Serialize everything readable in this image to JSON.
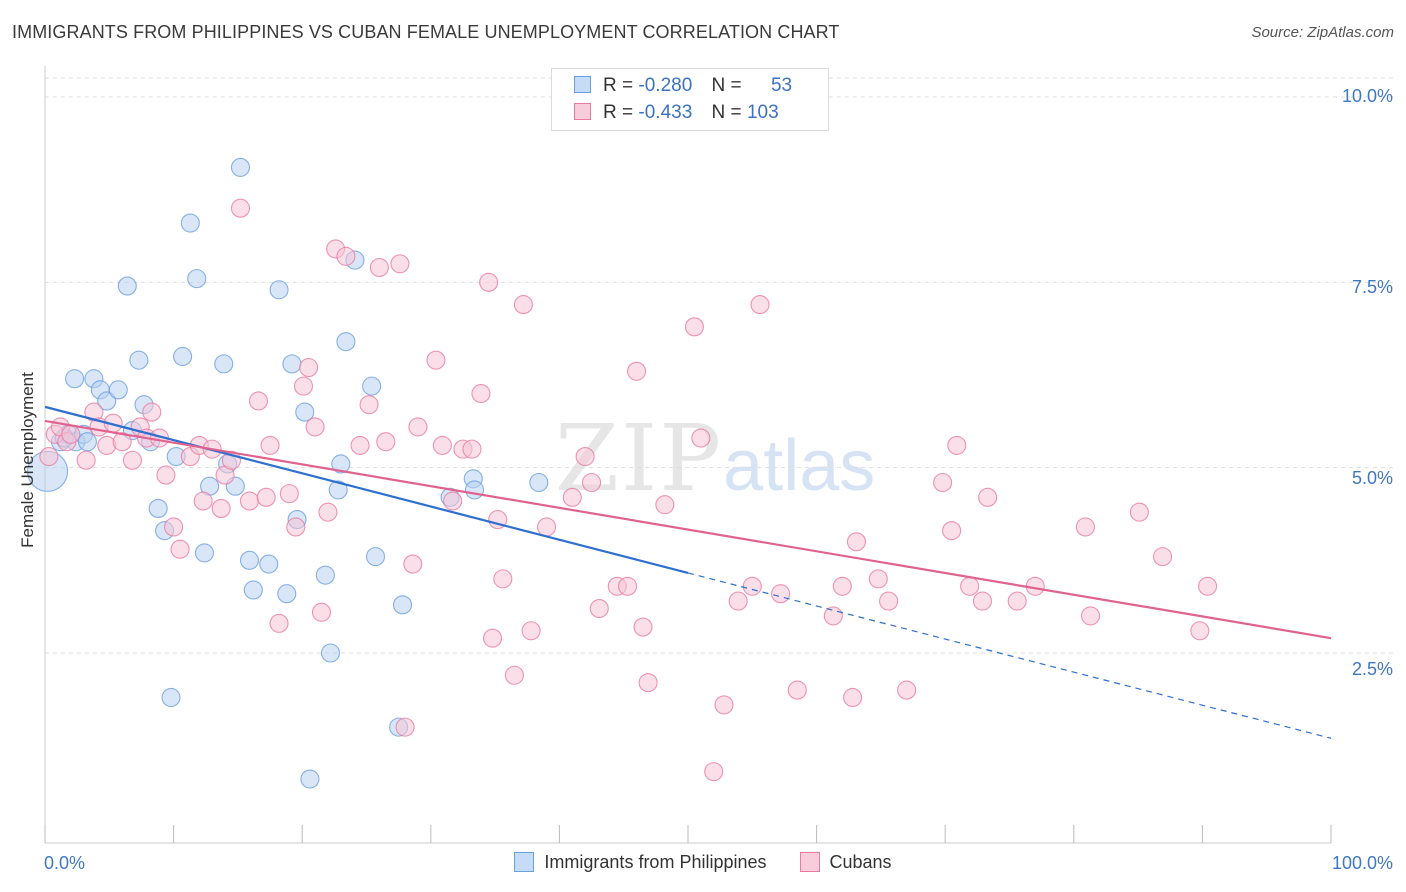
{
  "header": {
    "title": "IMMIGRANTS FROM PHILIPPINES VS CUBAN FEMALE UNEMPLOYMENT CORRELATION CHART",
    "source": "Source: ZipAtlas.com"
  },
  "watermark": {
    "zip": "ZIP",
    "atlas": "atlas"
  },
  "stats": [
    {
      "r_label": "R =",
      "r_value": "-0.280",
      "n_label": "N =",
      "n_value": "53",
      "color": "#a9c7ef"
    },
    {
      "r_label": "R =",
      "r_value": "-0.433",
      "n_label": "N =",
      "n_value": "103",
      "color": "#f4b3c8"
    }
  ],
  "legend": [
    {
      "label": "Immigrants from Philippines",
      "color": "#a9c7ef"
    },
    {
      "label": "Cubans",
      "color": "#f4b3c8"
    }
  ],
  "chart_data": {
    "type": "scatter",
    "title": "IMMIGRANTS FROM PHILIPPINES VS CUBAN FEMALE UNEMPLOYMENT CORRELATION CHART",
    "xlabel": "",
    "ylabel": "Female Unemployment",
    "xlim": [
      0,
      100
    ],
    "ylim": [
      0,
      10
    ],
    "x_tick_labels": [
      "0.0%",
      "100.0%"
    ],
    "y_ticks": [
      2.5,
      5.0,
      7.5,
      10.0
    ],
    "y_tick_labels": [
      "2.5%",
      "5.0%",
      "7.5%",
      "10.0%"
    ],
    "grid": "horizontal dashed",
    "legend_position": "bottom-center",
    "series": [
      {
        "name": "Immigrants from Philippines",
        "color": "#6a9fe0",
        "fill": "#b9d2f3",
        "points": [
          [
            0.2,
            4.95
          ],
          [
            1.2,
            5.35
          ],
          [
            1.8,
            5.45
          ],
          [
            2.3,
            6.2
          ],
          [
            2.4,
            5.35
          ],
          [
            3.0,
            5.45
          ],
          [
            3.8,
            6.2
          ],
          [
            4.3,
            6.05
          ],
          [
            4.8,
            5.9
          ],
          [
            5.7,
            6.05
          ],
          [
            6.4,
            7.45
          ],
          [
            6.8,
            5.5
          ],
          [
            7.3,
            6.45
          ],
          [
            7.7,
            5.85
          ],
          [
            8.2,
            5.35
          ],
          [
            8.8,
            4.45
          ],
          [
            9.3,
            4.15
          ],
          [
            9.8,
            1.9
          ],
          [
            10.2,
            5.15
          ],
          [
            10.7,
            6.5
          ],
          [
            11.3,
            8.3
          ],
          [
            11.8,
            7.55
          ],
          [
            12.4,
            3.85
          ],
          [
            12.8,
            4.75
          ],
          [
            13.9,
            6.4
          ],
          [
            14.2,
            5.05
          ],
          [
            14.8,
            4.75
          ],
          [
            15.2,
            9.05
          ],
          [
            15.9,
            3.75
          ],
          [
            16.2,
            3.35
          ],
          [
            17.4,
            3.7
          ],
          [
            18.2,
            7.4
          ],
          [
            18.8,
            3.3
          ],
          [
            19.2,
            6.4
          ],
          [
            19.6,
            4.3
          ],
          [
            20.2,
            5.75
          ],
          [
            20.6,
            0.8
          ],
          [
            21.8,
            3.55
          ],
          [
            22.2,
            2.5
          ],
          [
            22.8,
            4.7
          ],
          [
            23.0,
            5.05
          ],
          [
            23.4,
            6.7
          ],
          [
            24.1,
            7.8
          ],
          [
            25.4,
            6.1
          ],
          [
            25.7,
            3.8
          ],
          [
            27.5,
            1.5
          ],
          [
            27.8,
            3.15
          ],
          [
            31.5,
            4.6
          ],
          [
            33.3,
            4.85
          ],
          [
            33.4,
            4.7
          ],
          [
            38.4,
            4.8
          ],
          [
            1.5,
            5.4
          ],
          [
            3.3,
            5.35
          ]
        ]
      },
      {
        "name": "Cubans",
        "color": "#ea7aa0",
        "fill": "#f6c5d5",
        "points": [
          [
            0.3,
            5.15
          ],
          [
            0.8,
            5.45
          ],
          [
            1.2,
            5.55
          ],
          [
            1.7,
            5.35
          ],
          [
            2.0,
            5.45
          ],
          [
            3.2,
            5.1
          ],
          [
            3.8,
            5.75
          ],
          [
            4.2,
            5.55
          ],
          [
            4.8,
            5.3
          ],
          [
            5.3,
            5.6
          ],
          [
            6.0,
            5.35
          ],
          [
            6.8,
            5.1
          ],
          [
            7.4,
            5.55
          ],
          [
            7.9,
            5.4
          ],
          [
            8.3,
            5.75
          ],
          [
            8.9,
            5.4
          ],
          [
            9.4,
            4.9
          ],
          [
            10.0,
            4.2
          ],
          [
            10.5,
            3.9
          ],
          [
            11.3,
            5.15
          ],
          [
            12.0,
            5.3
          ],
          [
            12.3,
            4.55
          ],
          [
            13.0,
            5.25
          ],
          [
            13.7,
            4.45
          ],
          [
            14.0,
            4.9
          ],
          [
            14.5,
            5.1
          ],
          [
            15.2,
            8.5
          ],
          [
            15.9,
            4.55
          ],
          [
            16.6,
            5.9
          ],
          [
            17.2,
            4.6
          ],
          [
            17.5,
            5.3
          ],
          [
            18.2,
            2.9
          ],
          [
            19.0,
            4.65
          ],
          [
            19.5,
            4.2
          ],
          [
            20.1,
            6.1
          ],
          [
            20.5,
            6.35
          ],
          [
            21.0,
            5.55
          ],
          [
            21.5,
            3.05
          ],
          [
            22.0,
            4.4
          ],
          [
            22.6,
            7.95
          ],
          [
            23.4,
            7.85
          ],
          [
            24.5,
            5.3
          ],
          [
            25.2,
            5.85
          ],
          [
            26.0,
            7.7
          ],
          [
            26.5,
            5.35
          ],
          [
            27.6,
            7.75
          ],
          [
            28.0,
            1.5
          ],
          [
            28.6,
            3.7
          ],
          [
            29.0,
            5.55
          ],
          [
            30.4,
            6.45
          ],
          [
            30.9,
            5.3
          ],
          [
            31.7,
            4.55
          ],
          [
            32.5,
            5.25
          ],
          [
            33.2,
            5.25
          ],
          [
            33.9,
            6.0
          ],
          [
            34.5,
            7.5
          ],
          [
            34.8,
            2.7
          ],
          [
            35.2,
            4.3
          ],
          [
            35.6,
            3.5
          ],
          [
            36.5,
            2.2
          ],
          [
            37.2,
            7.2
          ],
          [
            37.8,
            2.8
          ],
          [
            39.0,
            4.2
          ],
          [
            41.0,
            4.6
          ],
          [
            42.0,
            5.15
          ],
          [
            42.5,
            4.8
          ],
          [
            43.1,
            3.1
          ],
          [
            44.5,
            3.4
          ],
          [
            45.3,
            3.4
          ],
          [
            46.0,
            6.3
          ],
          [
            46.5,
            2.85
          ],
          [
            46.9,
            2.1
          ],
          [
            48.2,
            4.5
          ],
          [
            50.5,
            6.9
          ],
          [
            51.0,
            5.4
          ],
          [
            52.0,
            0.9
          ],
          [
            52.8,
            1.8
          ],
          [
            53.9,
            3.2
          ],
          [
            55.0,
            3.4
          ],
          [
            55.6,
            7.2
          ],
          [
            57.2,
            3.3
          ],
          [
            58.5,
            2.0
          ],
          [
            61.3,
            3.0
          ],
          [
            62.0,
            3.4
          ],
          [
            62.8,
            1.9
          ],
          [
            63.1,
            4.0
          ],
          [
            64.8,
            3.5
          ],
          [
            65.6,
            3.2
          ],
          [
            67.0,
            2.0
          ],
          [
            69.8,
            4.8
          ],
          [
            70.5,
            4.15
          ],
          [
            70.9,
            5.3
          ],
          [
            71.9,
            3.4
          ],
          [
            72.9,
            3.2
          ],
          [
            73.3,
            4.6
          ],
          [
            75.6,
            3.2
          ],
          [
            77.0,
            3.4
          ],
          [
            80.9,
            4.2
          ],
          [
            81.3,
            3.0
          ],
          [
            85.1,
            4.4
          ],
          [
            86.9,
            3.8
          ],
          [
            89.8,
            2.8
          ],
          [
            90.4,
            3.4
          ]
        ]
      }
    ],
    "trend_lines": [
      {
        "series": "Immigrants from Philippines",
        "solid": [
          [
            0,
            5.82
          ],
          [
            50,
            3.58
          ]
        ],
        "dashed": [
          [
            50,
            3.58
          ],
          [
            100,
            1.35
          ]
        ]
      },
      {
        "series": "Cubans",
        "solid": [
          [
            0,
            5.63
          ],
          [
            100,
            2.7
          ]
        ]
      }
    ]
  }
}
